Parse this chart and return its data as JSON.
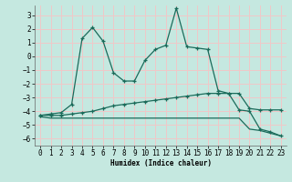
{
  "xlabel": "Humidex (Indice chaleur)",
  "xlim": [
    -0.5,
    23.5
  ],
  "ylim": [
    -6.5,
    3.7
  ],
  "yticks": [
    3,
    2,
    1,
    0,
    -1,
    -2,
    -3,
    -4,
    -5,
    -6
  ],
  "xticks": [
    0,
    1,
    2,
    3,
    4,
    5,
    6,
    7,
    8,
    9,
    10,
    11,
    12,
    13,
    14,
    15,
    16,
    17,
    18,
    19,
    20,
    21,
    22,
    23
  ],
  "background_color": "#c5e8e0",
  "grid_color": "#f0c8c8",
  "line_color": "#1a6b5a",
  "curve1_x": [
    0,
    1,
    2,
    3,
    4,
    5,
    6,
    7,
    8,
    9,
    10,
    11,
    12,
    13,
    14,
    15,
    16,
    17,
    18,
    19,
    20,
    21,
    22,
    23
  ],
  "curve1_y": [
    -4.3,
    -4.2,
    -4.1,
    -3.5,
    1.3,
    2.1,
    1.1,
    -1.2,
    -1.8,
    -1.8,
    -0.3,
    0.5,
    0.8,
    3.5,
    0.7,
    0.6,
    0.5,
    -2.5,
    -2.7,
    -3.9,
    -4.0,
    -5.3,
    -5.5,
    -5.8
  ],
  "curve2_x": [
    0,
    1,
    2,
    3,
    4,
    5,
    6,
    7,
    8,
    9,
    10,
    11,
    12,
    13,
    14,
    15,
    16,
    17,
    18,
    19,
    20,
    21,
    22,
    23
  ],
  "curve2_y": [
    -4.3,
    -4.3,
    -4.3,
    -4.2,
    -4.1,
    -4.0,
    -3.8,
    -3.6,
    -3.5,
    -3.4,
    -3.3,
    -3.2,
    -3.1,
    -3.0,
    -2.9,
    -2.8,
    -2.7,
    -2.7,
    -2.7,
    -2.7,
    -3.8,
    -3.9,
    -3.9,
    -3.9
  ],
  "curve3_x": [
    0,
    1,
    2,
    3,
    4,
    5,
    6,
    7,
    8,
    9,
    10,
    11,
    12,
    13,
    14,
    15,
    16,
    17,
    18,
    19,
    20,
    21,
    22,
    23
  ],
  "curve3_y": [
    -4.4,
    -4.5,
    -4.5,
    -4.5,
    -4.5,
    -4.5,
    -4.5,
    -4.5,
    -4.5,
    -4.5,
    -4.5,
    -4.5,
    -4.5,
    -4.5,
    -4.5,
    -4.5,
    -4.5,
    -4.5,
    -4.5,
    -4.5,
    -5.3,
    -5.4,
    -5.6,
    -5.8
  ]
}
